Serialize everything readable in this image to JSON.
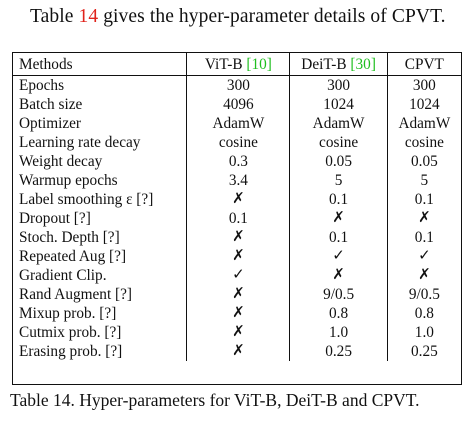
{
  "intro": {
    "before": "Table ",
    "ref": "14",
    "after": " gives the hyper-parameter details of CPVT."
  },
  "table": {
    "header": {
      "methods": "Methods",
      "col1_name": "ViT-B ",
      "col1_ref": "[10]",
      "col2_name": "DeiT-B ",
      "col2_ref": "[30]",
      "col3_name": "CPVT"
    },
    "rows": [
      {
        "label": "Epochs",
        "vit": "300",
        "deit": "300",
        "cpvt": "300"
      },
      {
        "label": "Batch size",
        "vit": "4096",
        "deit": "1024",
        "cpvt": "1024"
      },
      {
        "label": "Optimizer",
        "vit": "AdamW",
        "deit": "AdamW",
        "cpvt": "AdamW"
      },
      {
        "label": "Learning rate decay",
        "vit": "cosine",
        "deit": "cosine",
        "cpvt": "cosine"
      },
      {
        "label": "Weight decay",
        "vit": "0.3",
        "deit": "0.05",
        "cpvt": "0.05"
      },
      {
        "label": "Warmup epochs",
        "vit": "3.4",
        "deit": "5",
        "cpvt": "5"
      },
      {
        "label": "Label smoothing ε [?]",
        "vit": "✗",
        "deit": "0.1",
        "cpvt": "0.1"
      },
      {
        "label": "Dropout [?]",
        "vit": "0.1",
        "deit": "✗",
        "cpvt": "✗"
      },
      {
        "label": "Stoch. Depth [?]",
        "vit": "✗",
        "deit": "0.1",
        "cpvt": "0.1"
      },
      {
        "label": "Repeated Aug [?]",
        "vit": "✗",
        "deit": "✓",
        "cpvt": "✓"
      },
      {
        "label": "Gradient Clip.",
        "vit": "✓",
        "deit": "✗",
        "cpvt": "✗"
      },
      {
        "label": "Rand Augment [?]",
        "vit": "✗",
        "deit": "9/0.5",
        "cpvt": "9/0.5"
      },
      {
        "label": "Mixup prob. [?]",
        "vit": "✗",
        "deit": "0.8",
        "cpvt": "0.8"
      },
      {
        "label": "Cutmix prob. [?]",
        "vit": "✗",
        "deit": "1.0",
        "cpvt": "1.0"
      },
      {
        "label": "Erasing prob. [?]",
        "vit": "✗",
        "deit": "0.25",
        "cpvt": "0.25"
      }
    ]
  },
  "caption": "Table 14. Hyper-parameters for ViT-B, DeiT-B and CPVT."
}
